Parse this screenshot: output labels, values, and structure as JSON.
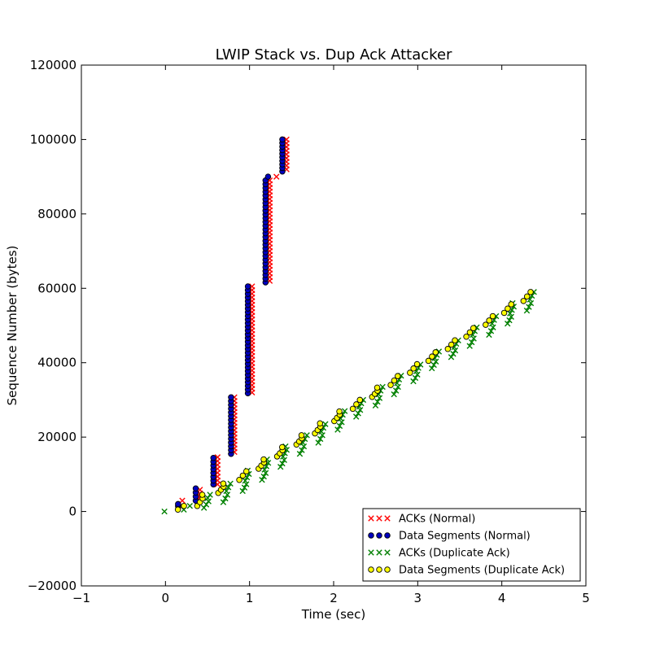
{
  "chart_data": {
    "type": "scatter",
    "title": "LWIP Stack vs. Dup Ack Attacker",
    "xlabel": "Time (sec)",
    "ylabel": "Sequence Number (bytes)",
    "xlim": [
      -1,
      5
    ],
    "ylim": [
      -20000,
      120000
    ],
    "xticks": [
      -1,
      0,
      1,
      2,
      3,
      4,
      5
    ],
    "xtick_labels": [
      "−1",
      "0",
      "1",
      "2",
      "3",
      "4",
      "5"
    ],
    "yticks": [
      -20000,
      0,
      20000,
      40000,
      60000,
      80000,
      100000,
      120000
    ],
    "ytick_labels": [
      "−20000",
      "0",
      "20000",
      "40000",
      "60000",
      "80000",
      "100000",
      "120000"
    ],
    "grid": false,
    "legend_position": "bottom-right",
    "series": [
      {
        "name": "ACKs (Normal)",
        "marker": "x",
        "color": "#ff0000",
        "clusters": [
          {
            "x": 0.2,
            "y_min": 1460,
            "y_max": 2920
          },
          {
            "x": 0.41,
            "y_min": 2920,
            "y_max": 5840
          },
          {
            "x": 0.62,
            "y_min": 7300,
            "y_max": 14600
          },
          {
            "x": 0.82,
            "y_min": 16000,
            "y_max": 30700
          },
          {
            "x": 1.03,
            "y_min": 32000,
            "y_max": 60500
          },
          {
            "x": 1.24,
            "y_min": 62000,
            "y_max": 89000
          },
          {
            "x": 1.32,
            "y_min": 90000,
            "y_max": 90000
          },
          {
            "x": 1.44,
            "y_min": 92000,
            "y_max": 100000
          }
        ]
      },
      {
        "name": "Data Segments (Normal)",
        "marker": "o",
        "color": "#0000bf",
        "clusters": [
          {
            "x": 0.15,
            "y_min": 1460,
            "y_max": 2000
          },
          {
            "x": 0.36,
            "y_min": 2920,
            "y_max": 6200
          },
          {
            "x": 0.57,
            "y_min": 7300,
            "y_max": 14400
          },
          {
            "x": 0.78,
            "y_min": 15500,
            "y_max": 30700
          },
          {
            "x": 0.98,
            "y_min": 31800,
            "y_max": 60500
          },
          {
            "x": 1.19,
            "y_min": 61600,
            "y_max": 89000
          },
          {
            "x": 1.22,
            "y_min": 90000,
            "y_max": 90000
          },
          {
            "x": 1.39,
            "y_min": 91400,
            "y_max": 100000
          }
        ]
      },
      {
        "name": "ACKs (Duplicate Ack)",
        "marker": "x",
        "color": "#008000",
        "clusters": [
          {
            "x": 0.0,
            "y_min": 0,
            "y_max": 0
          },
          {
            "x": 0.26,
            "y_min": 500,
            "y_max": 1500
          },
          {
            "x": 0.5,
            "y_min": 1000,
            "y_max": 4500
          },
          {
            "x": 0.73,
            "y_min": 2500,
            "y_max": 7500
          },
          {
            "x": 0.96,
            "y_min": 5500,
            "y_max": 11000
          },
          {
            "x": 1.19,
            "y_min": 8500,
            "y_max": 14000
          },
          {
            "x": 1.41,
            "y_min": 12000,
            "y_max": 17500
          },
          {
            "x": 1.64,
            "y_min": 15500,
            "y_max": 20500
          },
          {
            "x": 1.86,
            "y_min": 18500,
            "y_max": 23500
          },
          {
            "x": 2.09,
            "y_min": 22000,
            "y_max": 27000
          },
          {
            "x": 2.31,
            "y_min": 25500,
            "y_max": 30000
          },
          {
            "x": 2.54,
            "y_min": 28500,
            "y_max": 33500
          },
          {
            "x": 2.76,
            "y_min": 31500,
            "y_max": 36500
          },
          {
            "x": 2.99,
            "y_min": 35000,
            "y_max": 39500
          },
          {
            "x": 3.21,
            "y_min": 38500,
            "y_max": 43000
          },
          {
            "x": 3.44,
            "y_min": 41500,
            "y_max": 46000
          },
          {
            "x": 3.66,
            "y_min": 44500,
            "y_max": 49500
          },
          {
            "x": 3.89,
            "y_min": 47500,
            "y_max": 52500
          },
          {
            "x": 4.11,
            "y_min": 50500,
            "y_max": 56000
          },
          {
            "x": 4.34,
            "y_min": 54000,
            "y_max": 59000
          }
        ]
      },
      {
        "name": "Data Segments (Duplicate Ack)",
        "marker": "o",
        "color": "#ffff00",
        "clusters": [
          {
            "x": 0.19,
            "y_min": 500,
            "y_max": 1500
          },
          {
            "x": 0.42,
            "y_min": 1500,
            "y_max": 4500
          },
          {
            "x": 0.67,
            "y_min": 5000,
            "y_max": 7500
          },
          {
            "x": 0.92,
            "y_min": 8500,
            "y_max": 10800
          },
          {
            "x": 1.15,
            "y_min": 11500,
            "y_max": 14000
          },
          {
            "x": 1.37,
            "y_min": 14800,
            "y_max": 17300
          },
          {
            "x": 1.6,
            "y_min": 18000,
            "y_max": 20500
          },
          {
            "x": 1.82,
            "y_min": 21000,
            "y_max": 23700
          },
          {
            "x": 2.05,
            "y_min": 24300,
            "y_max": 26900
          },
          {
            "x": 2.27,
            "y_min": 27600,
            "y_max": 30000
          },
          {
            "x": 2.5,
            "y_min": 30800,
            "y_max": 33300
          },
          {
            "x": 2.72,
            "y_min": 34000,
            "y_max": 36400
          },
          {
            "x": 2.95,
            "y_min": 37300,
            "y_max": 39600
          },
          {
            "x": 3.17,
            "y_min": 40500,
            "y_max": 42800
          },
          {
            "x": 3.4,
            "y_min": 43700,
            "y_max": 46000
          },
          {
            "x": 3.62,
            "y_min": 47000,
            "y_max": 49300
          },
          {
            "x": 3.85,
            "y_min": 50200,
            "y_max": 52500
          },
          {
            "x": 4.07,
            "y_min": 53400,
            "y_max": 55700
          },
          {
            "x": 4.3,
            "y_min": 56600,
            "y_max": 59000
          }
        ]
      }
    ]
  }
}
